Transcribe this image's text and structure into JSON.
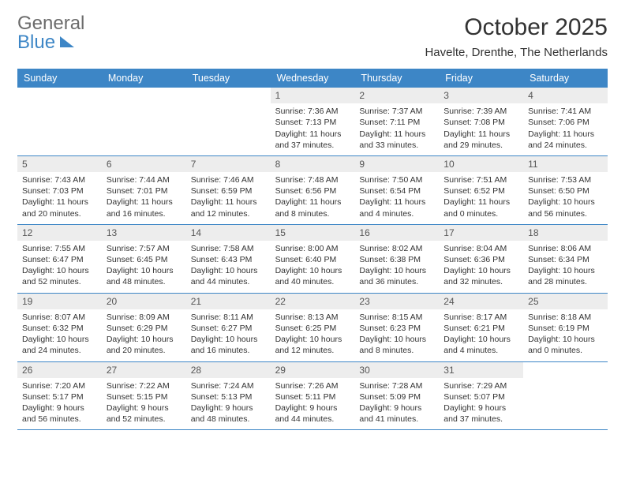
{
  "logo": {
    "line1": "General",
    "line2": "Blue"
  },
  "header": {
    "month_title": "October 2025",
    "location": "Havelte, Drenthe, The Netherlands"
  },
  "style": {
    "accent": "#3d86c6",
    "daynum_bg": "#ededed",
    "text": "#333333",
    "logo_gray": "#6b6b6b"
  },
  "day_headers": [
    "Sunday",
    "Monday",
    "Tuesday",
    "Wednesday",
    "Thursday",
    "Friday",
    "Saturday"
  ],
  "weeks": [
    [
      {
        "n": "",
        "lines": []
      },
      {
        "n": "",
        "lines": []
      },
      {
        "n": "",
        "lines": []
      },
      {
        "n": "1",
        "lines": [
          "Sunrise: 7:36 AM",
          "Sunset: 7:13 PM",
          "Daylight: 11 hours and 37 minutes."
        ]
      },
      {
        "n": "2",
        "lines": [
          "Sunrise: 7:37 AM",
          "Sunset: 7:11 PM",
          "Daylight: 11 hours and 33 minutes."
        ]
      },
      {
        "n": "3",
        "lines": [
          "Sunrise: 7:39 AM",
          "Sunset: 7:08 PM",
          "Daylight: 11 hours and 29 minutes."
        ]
      },
      {
        "n": "4",
        "lines": [
          "Sunrise: 7:41 AM",
          "Sunset: 7:06 PM",
          "Daylight: 11 hours and 24 minutes."
        ]
      }
    ],
    [
      {
        "n": "5",
        "lines": [
          "Sunrise: 7:43 AM",
          "Sunset: 7:03 PM",
          "Daylight: 11 hours and 20 minutes."
        ]
      },
      {
        "n": "6",
        "lines": [
          "Sunrise: 7:44 AM",
          "Sunset: 7:01 PM",
          "Daylight: 11 hours and 16 minutes."
        ]
      },
      {
        "n": "7",
        "lines": [
          "Sunrise: 7:46 AM",
          "Sunset: 6:59 PM",
          "Daylight: 11 hours and 12 minutes."
        ]
      },
      {
        "n": "8",
        "lines": [
          "Sunrise: 7:48 AM",
          "Sunset: 6:56 PM",
          "Daylight: 11 hours and 8 minutes."
        ]
      },
      {
        "n": "9",
        "lines": [
          "Sunrise: 7:50 AM",
          "Sunset: 6:54 PM",
          "Daylight: 11 hours and 4 minutes."
        ]
      },
      {
        "n": "10",
        "lines": [
          "Sunrise: 7:51 AM",
          "Sunset: 6:52 PM",
          "Daylight: 11 hours and 0 minutes."
        ]
      },
      {
        "n": "11",
        "lines": [
          "Sunrise: 7:53 AM",
          "Sunset: 6:50 PM",
          "Daylight: 10 hours and 56 minutes."
        ]
      }
    ],
    [
      {
        "n": "12",
        "lines": [
          "Sunrise: 7:55 AM",
          "Sunset: 6:47 PM",
          "Daylight: 10 hours and 52 minutes."
        ]
      },
      {
        "n": "13",
        "lines": [
          "Sunrise: 7:57 AM",
          "Sunset: 6:45 PM",
          "Daylight: 10 hours and 48 minutes."
        ]
      },
      {
        "n": "14",
        "lines": [
          "Sunrise: 7:58 AM",
          "Sunset: 6:43 PM",
          "Daylight: 10 hours and 44 minutes."
        ]
      },
      {
        "n": "15",
        "lines": [
          "Sunrise: 8:00 AM",
          "Sunset: 6:40 PM",
          "Daylight: 10 hours and 40 minutes."
        ]
      },
      {
        "n": "16",
        "lines": [
          "Sunrise: 8:02 AM",
          "Sunset: 6:38 PM",
          "Daylight: 10 hours and 36 minutes."
        ]
      },
      {
        "n": "17",
        "lines": [
          "Sunrise: 8:04 AM",
          "Sunset: 6:36 PM",
          "Daylight: 10 hours and 32 minutes."
        ]
      },
      {
        "n": "18",
        "lines": [
          "Sunrise: 8:06 AM",
          "Sunset: 6:34 PM",
          "Daylight: 10 hours and 28 minutes."
        ]
      }
    ],
    [
      {
        "n": "19",
        "lines": [
          "Sunrise: 8:07 AM",
          "Sunset: 6:32 PM",
          "Daylight: 10 hours and 24 minutes."
        ]
      },
      {
        "n": "20",
        "lines": [
          "Sunrise: 8:09 AM",
          "Sunset: 6:29 PM",
          "Daylight: 10 hours and 20 minutes."
        ]
      },
      {
        "n": "21",
        "lines": [
          "Sunrise: 8:11 AM",
          "Sunset: 6:27 PM",
          "Daylight: 10 hours and 16 minutes."
        ]
      },
      {
        "n": "22",
        "lines": [
          "Sunrise: 8:13 AM",
          "Sunset: 6:25 PM",
          "Daylight: 10 hours and 12 minutes."
        ]
      },
      {
        "n": "23",
        "lines": [
          "Sunrise: 8:15 AM",
          "Sunset: 6:23 PM",
          "Daylight: 10 hours and 8 minutes."
        ]
      },
      {
        "n": "24",
        "lines": [
          "Sunrise: 8:17 AM",
          "Sunset: 6:21 PM",
          "Daylight: 10 hours and 4 minutes."
        ]
      },
      {
        "n": "25",
        "lines": [
          "Sunrise: 8:18 AM",
          "Sunset: 6:19 PM",
          "Daylight: 10 hours and 0 minutes."
        ]
      }
    ],
    [
      {
        "n": "26",
        "lines": [
          "Sunrise: 7:20 AM",
          "Sunset: 5:17 PM",
          "Daylight: 9 hours and 56 minutes."
        ]
      },
      {
        "n": "27",
        "lines": [
          "Sunrise: 7:22 AM",
          "Sunset: 5:15 PM",
          "Daylight: 9 hours and 52 minutes."
        ]
      },
      {
        "n": "28",
        "lines": [
          "Sunrise: 7:24 AM",
          "Sunset: 5:13 PM",
          "Daylight: 9 hours and 48 minutes."
        ]
      },
      {
        "n": "29",
        "lines": [
          "Sunrise: 7:26 AM",
          "Sunset: 5:11 PM",
          "Daylight: 9 hours and 44 minutes."
        ]
      },
      {
        "n": "30",
        "lines": [
          "Sunrise: 7:28 AM",
          "Sunset: 5:09 PM",
          "Daylight: 9 hours and 41 minutes."
        ]
      },
      {
        "n": "31",
        "lines": [
          "Sunrise: 7:29 AM",
          "Sunset: 5:07 PM",
          "Daylight: 9 hours and 37 minutes."
        ]
      },
      {
        "n": "",
        "lines": []
      }
    ]
  ]
}
